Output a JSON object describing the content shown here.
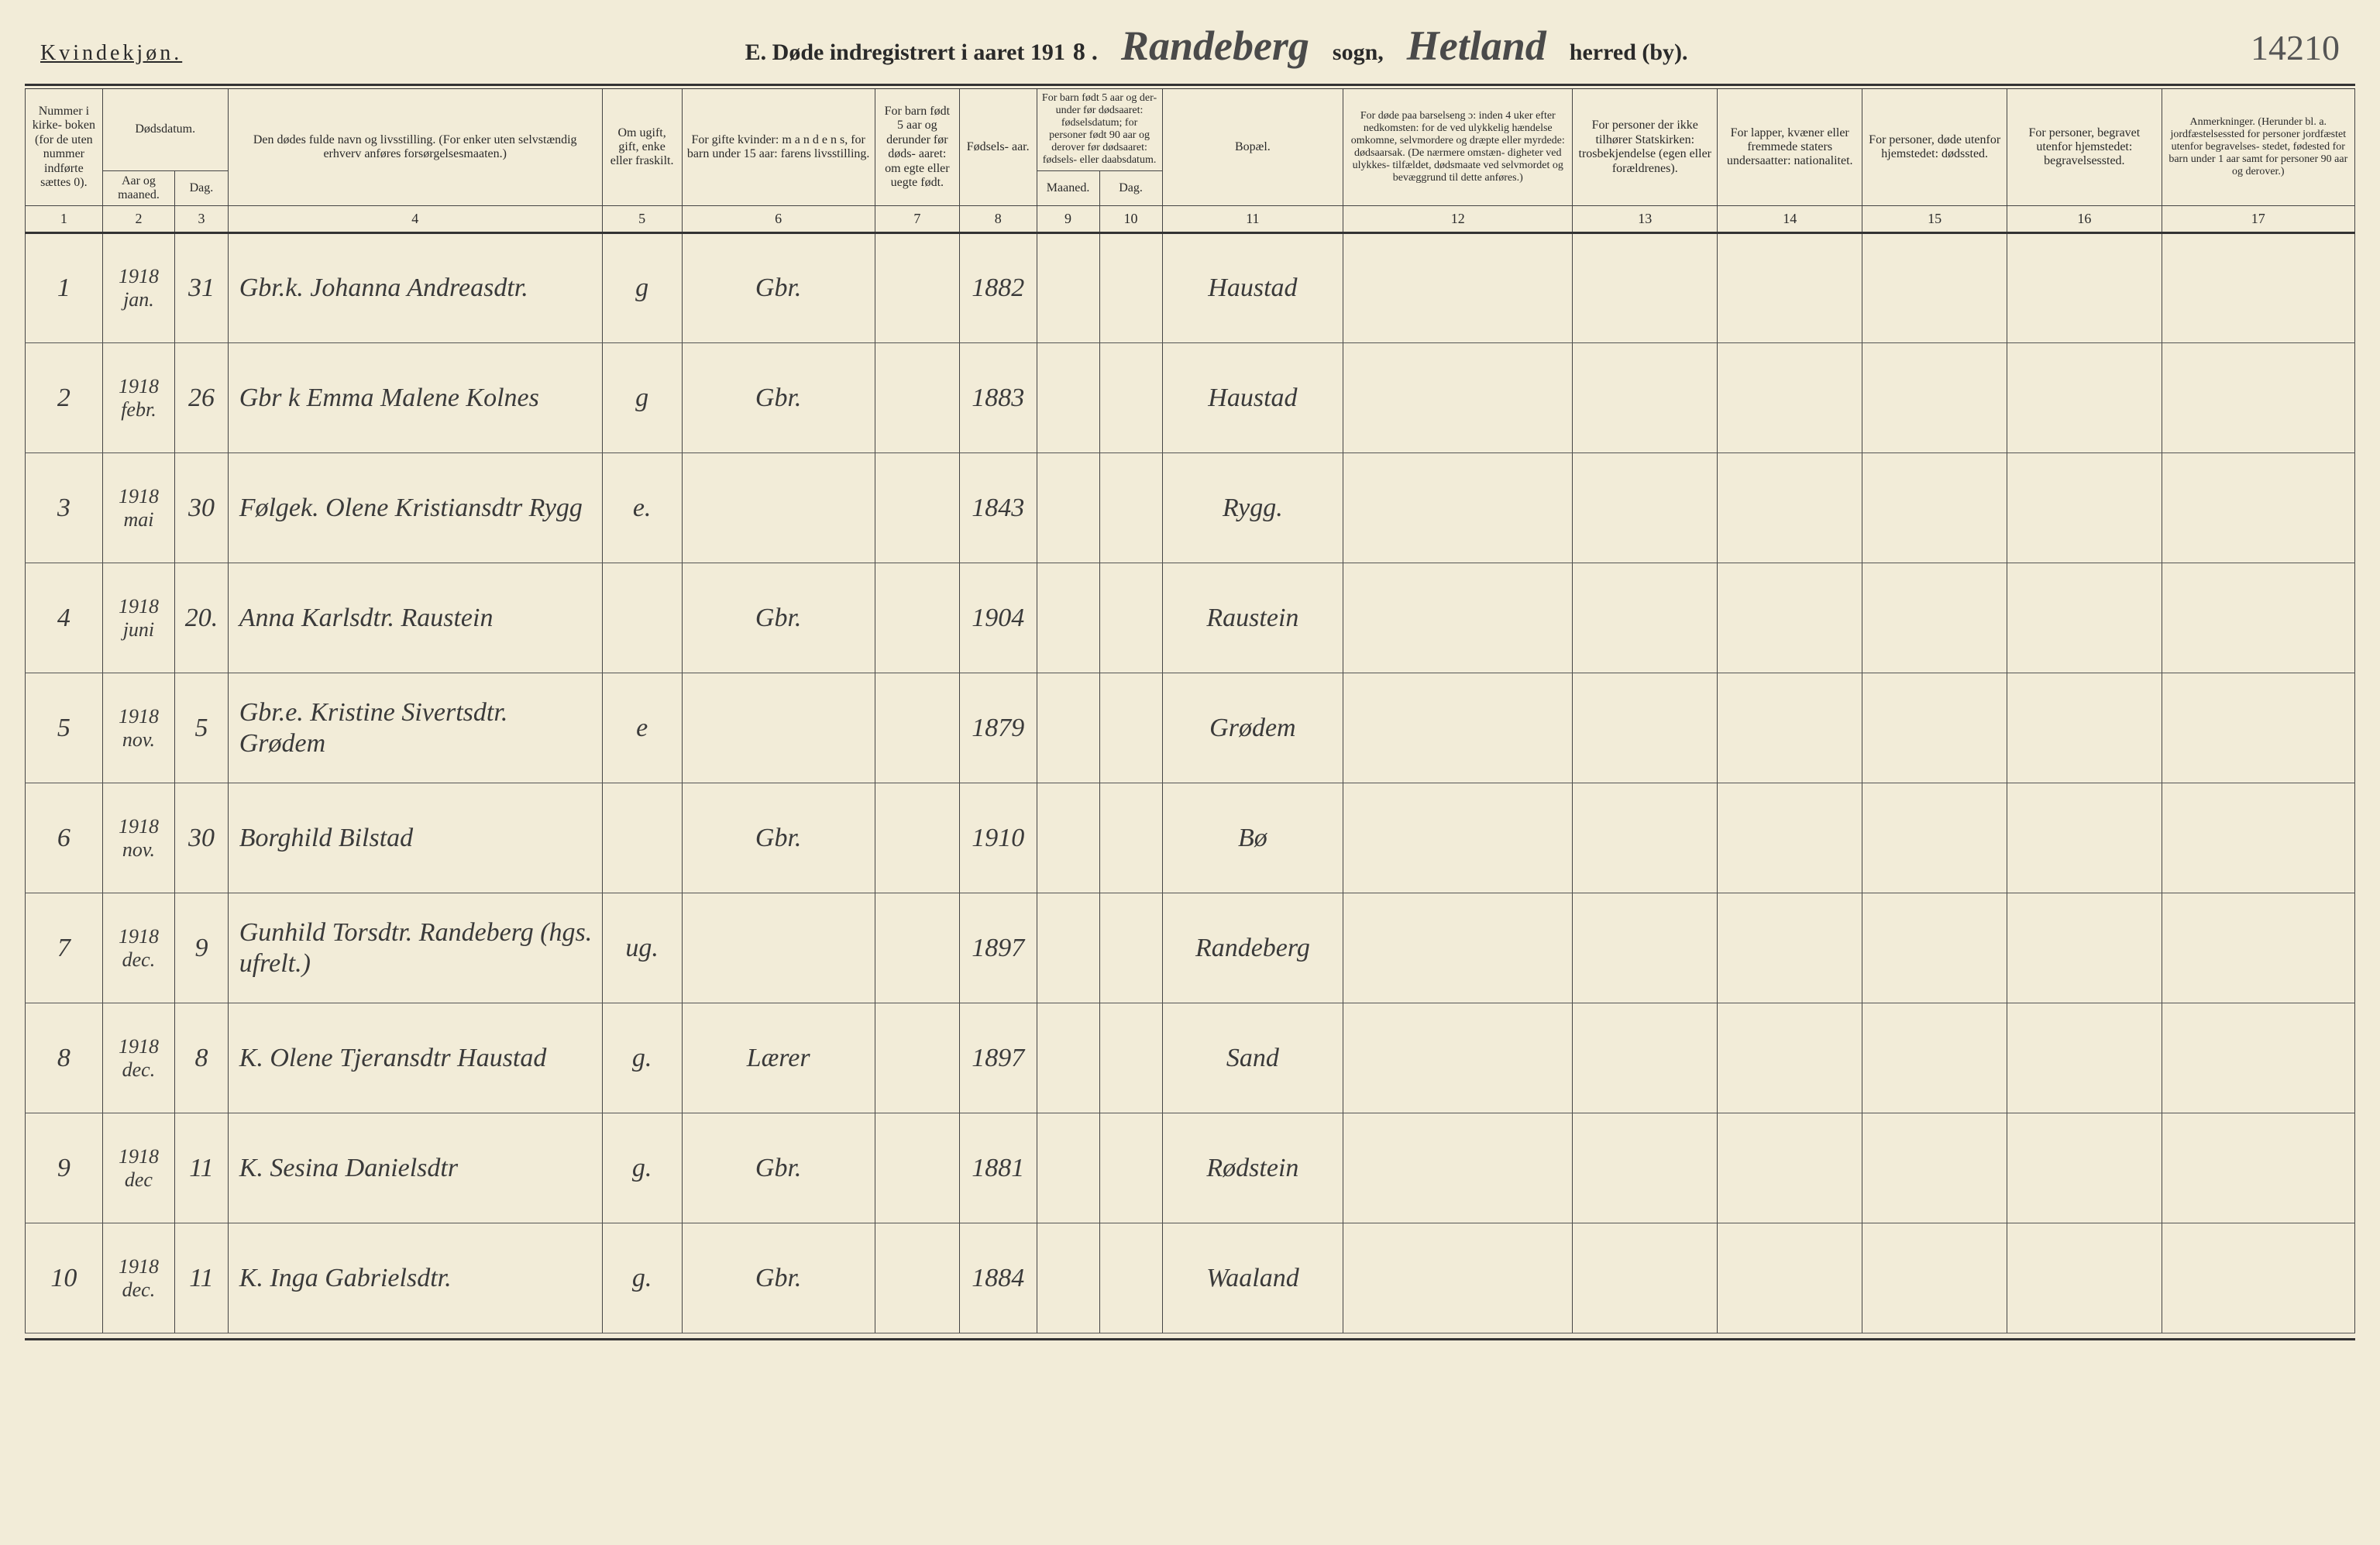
{
  "header": {
    "gender": "Kvindekjøn.",
    "title_prefix": "E.  Døde indregistrert i aaret 191",
    "year_suffix": "8 .",
    "sogn_hand": "Randeberg",
    "sogn_label": "sogn,",
    "herred_hand": "Hetland",
    "herred_label": "herred (by).",
    "page_number": "14210"
  },
  "columns": {
    "c1": "Nummer i kirke- boken (for de uten nummer indførte sættes 0).",
    "c2_3_top": "Dødsdatum.",
    "c2": "Aar og maaned.",
    "c3": "Dag.",
    "c4": "Den dødes fulde navn og livsstilling. (For enker uten selvstændig erhverv anføres forsørgelsesmaaten.)",
    "c5": "Om ugift, gift, enke eller fraskilt.",
    "c6": "For gifte kvinder: m a n d e n s, for barn under 15 aar: farens livsstilling.",
    "c7": "For barn født 5 aar og derunder før døds- aaret: om egte eller uegte født.",
    "c8": "Fødsels- aar.",
    "c9_10_top": "For barn født 5 aar og der- under før dødsaaret: fødselsdatum; for personer født 90 aar og derover før dødsaaret: fødsels- eller daabsdatum.",
    "c9": "Maaned.",
    "c10": "Dag.",
    "c11": "Bopæl.",
    "c12": "For døde paa barselseng ɔ: inden 4 uker efter nedkomsten: for de ved ulykkelig hændelse omkomne, selvmordere og dræpte eller myrdede: dødsaarsak. (De nærmere omstæn- digheter ved ulykkes- tilfældet, dødsmaate ved selvmordet og bevæggrund til dette anføres.)",
    "c13": "For personer der ikke tilhører Statskirken: trosbekjendelse (egen eller forældrenes).",
    "c14": "For lapper, kvæner eller fremmede staters undersaatter: nationalitet.",
    "c15": "For personer, døde utenfor hjemstedet: dødssted.",
    "c16": "For personer, begravet utenfor hjemstedet: begravelsessted.",
    "c17": "Anmerkninger. (Herunder bl. a. jordfæstelsessted for personer jordfæstet utenfor begravelses- stedet, fødested for barn under 1 aar samt for personer 90 aar og derover.)"
  },
  "colnums": [
    "1",
    "2",
    "3",
    "4",
    "5",
    "6",
    "7",
    "8",
    "9",
    "10",
    "11",
    "12",
    "13",
    "14",
    "15",
    "16",
    "17"
  ],
  "rows": [
    {
      "n": "1",
      "ym": "1918 jan.",
      "d": "31",
      "name": "Gbr.k. Johanna Andreasdtr.",
      "stat": "g",
      "spouse": "Gbr.",
      "c7": "",
      "born": "1882",
      "c9": "",
      "c10": "",
      "place": "Haustad"
    },
    {
      "n": "2",
      "ym": "1918 febr.",
      "d": "26",
      "name": "Gbr k Emma Malene Kolnes",
      "stat": "g",
      "spouse": "Gbr.",
      "c7": "",
      "born": "1883",
      "c9": "",
      "c10": "",
      "place": "Haustad"
    },
    {
      "n": "3",
      "ym": "1918 mai",
      "d": "30",
      "name": "Følgek. Olene Kristiansdtr Rygg",
      "stat": "e.",
      "spouse": "",
      "c7": "",
      "born": "1843",
      "c9": "",
      "c10": "",
      "place": "Rygg."
    },
    {
      "n": "4",
      "ym": "1918 juni",
      "d": "20.",
      "name": "Anna Karlsdtr. Raustein",
      "stat": "",
      "spouse": "Gbr.",
      "c7": "",
      "born": "1904",
      "c9": "",
      "c10": "",
      "place": "Raustein"
    },
    {
      "n": "5",
      "ym": "1918 nov.",
      "d": "5",
      "name": "Gbr.e. Kristine Sivertsdtr. Grødem",
      "stat": "e",
      "spouse": "",
      "c7": "",
      "born": "1879",
      "c9": "",
      "c10": "",
      "place": "Grødem"
    },
    {
      "n": "6",
      "ym": "1918 nov.",
      "d": "30",
      "name": "Borghild Bilstad",
      "stat": "",
      "spouse": "Gbr.",
      "c7": "",
      "born": "1910",
      "c9": "",
      "c10": "",
      "place": "Bø"
    },
    {
      "n": "7",
      "ym": "1918 dec.",
      "d": "9",
      "name": "Gunhild Torsdtr. Randeberg (hgs. ufrelt.)",
      "stat": "ug.",
      "spouse": "",
      "c7": "",
      "born": "1897",
      "c9": "",
      "c10": "",
      "place": "Randeberg"
    },
    {
      "n": "8",
      "ym": "1918 dec.",
      "d": "8",
      "name": "K. Olene Tjeransdtr Haustad",
      "stat": "g.",
      "spouse": "Lærer",
      "c7": "",
      "born": "1897",
      "c9": "",
      "c10": "",
      "place": "Sand"
    },
    {
      "n": "9",
      "ym": "1918 dec",
      "d": "11",
      "name": "K. Sesina Danielsdtr",
      "stat": "g.",
      "spouse": "Gbr.",
      "c7": "",
      "born": "1881",
      "c9": "",
      "c10": "",
      "place": "Rødstein"
    },
    {
      "n": "10",
      "ym": "1918 dec.",
      "d": "11",
      "name": "K. Inga Gabrielsdtr.",
      "stat": "g.",
      "spouse": "Gbr.",
      "c7": "",
      "born": "1884",
      "c9": "",
      "c10": "",
      "place": "Waaland"
    }
  ]
}
